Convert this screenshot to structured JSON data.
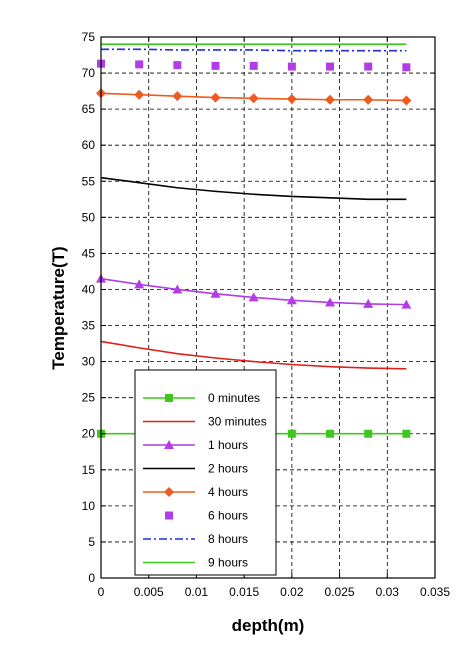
{
  "chart_data": {
    "type": "line",
    "title": "",
    "xlabel": "depth(m)",
    "ylabel": "Temperature(T)",
    "xlim": [
      0,
      0.035
    ],
    "ylim": [
      0,
      75
    ],
    "xticks": [
      "0",
      "0.005",
      "0.01",
      "0.015",
      "0.02",
      "0.025",
      "0.03",
      "0.035"
    ],
    "yticks": [
      "0",
      "5",
      "10",
      "15",
      "20",
      "25",
      "30",
      "35",
      "40",
      "45",
      "50",
      "55",
      "60",
      "65",
      "70",
      "75"
    ],
    "grid": true,
    "legend_position": "bottom-left",
    "series": [
      {
        "name": "0 minutes",
        "color": "#3ec81e",
        "style": "line+square",
        "x": [
          0,
          0.004,
          0.008,
          0.012,
          0.016,
          0.02,
          0.024,
          0.028,
          0.032
        ],
        "y": [
          20,
          20,
          20,
          20,
          20,
          20,
          20,
          20,
          20
        ]
      },
      {
        "name": "30 minutes",
        "color": "#e0201a",
        "style": "line",
        "x": [
          0,
          0.004,
          0.008,
          0.012,
          0.016,
          0.02,
          0.024,
          0.028,
          0.032
        ],
        "y": [
          32.8,
          31.9,
          31.1,
          30.5,
          30.0,
          29.6,
          29.3,
          29.1,
          29.0
        ]
      },
      {
        "name": "1 hours",
        "color": "#b23ce6",
        "style": "line+triangle",
        "x": [
          0,
          0.004,
          0.008,
          0.012,
          0.016,
          0.02,
          0.024,
          0.028,
          0.032
        ],
        "y": [
          41.5,
          40.7,
          40.0,
          39.4,
          38.9,
          38.5,
          38.2,
          38.0,
          37.9
        ]
      },
      {
        "name": "2 hours",
        "color": "#000000",
        "style": "line",
        "x": [
          0,
          0.004,
          0.008,
          0.012,
          0.016,
          0.02,
          0.024,
          0.028,
          0.032
        ],
        "y": [
          55.5,
          54.8,
          54.1,
          53.6,
          53.2,
          52.9,
          52.7,
          52.5,
          52.5
        ]
      },
      {
        "name": "4 hours",
        "color": "#f05a1e",
        "style": "line+diamond",
        "x": [
          0,
          0.004,
          0.008,
          0.012,
          0.016,
          0.02,
          0.024,
          0.028,
          0.032
        ],
        "y": [
          67.2,
          67.0,
          66.8,
          66.6,
          66.5,
          66.4,
          66.3,
          66.3,
          66.2
        ]
      },
      {
        "name": "6 hours",
        "color": "#b23ce6",
        "style": "square-markers",
        "x": [
          0,
          0.004,
          0.008,
          0.012,
          0.016,
          0.02,
          0.024,
          0.028,
          0.032
        ],
        "y": [
          71.3,
          71.2,
          71.1,
          71.0,
          71.0,
          70.9,
          70.9,
          70.9,
          70.8
        ]
      },
      {
        "name": "8 hours",
        "color": "#1e2ee0",
        "style": "dash-dot",
        "x": [
          0,
          0.004,
          0.008,
          0.012,
          0.016,
          0.02,
          0.024,
          0.028,
          0.032
        ],
        "y": [
          73.3,
          73.3,
          73.2,
          73.2,
          73.2,
          73.1,
          73.1,
          73.1,
          73.1
        ]
      },
      {
        "name": "9 hours",
        "color": "#3ec81e",
        "style": "line",
        "x": [
          0,
          0.004,
          0.008,
          0.012,
          0.016,
          0.02,
          0.024,
          0.028,
          0.032
        ],
        "y": [
          74.0,
          74.0,
          74.0,
          74.0,
          74.0,
          74.0,
          74.0,
          74.0,
          74.0
        ]
      }
    ]
  }
}
